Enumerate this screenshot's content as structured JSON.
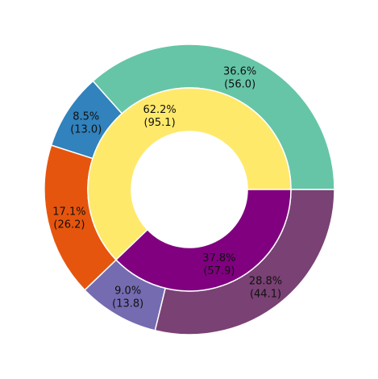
{
  "chart_data": {
    "type": "pie",
    "variant": "nested-donut",
    "start_angle_deg": 0,
    "direction": "counterclockwise",
    "legend": "none",
    "rings": [
      {
        "ring": "outer",
        "slices": [
          {
            "value": 56.0,
            "percent": "36.6%",
            "value_label": "(56.0)",
            "color": "#66c5a7"
          },
          {
            "value": 13.0,
            "percent": "8.5%",
            "value_label": "(13.0)",
            "color": "#3182bd"
          },
          {
            "value": 26.2,
            "percent": "17.1%",
            "value_label": "(26.2)",
            "color": "#e6550d"
          },
          {
            "value": 13.8,
            "percent": "9.0%",
            "value_label": "(13.8)",
            "color": "#756bb1"
          },
          {
            "value": 44.1,
            "percent": "28.8%",
            "value_label": "(44.1)",
            "color": "#7a4174"
          }
        ]
      },
      {
        "ring": "inner",
        "slices": [
          {
            "value": 95.1,
            "percent": "62.2%",
            "value_label": "(95.1)",
            "color": "#ffe96b"
          },
          {
            "value": 57.9,
            "percent": "37.8%",
            "value_label": "(57.9)",
            "color": "#800080"
          }
        ]
      }
    ]
  }
}
